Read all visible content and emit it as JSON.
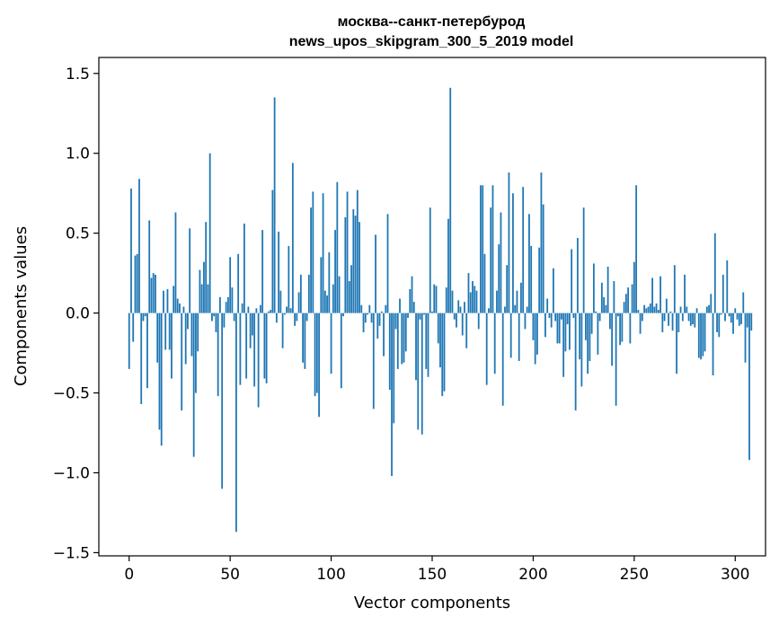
{
  "chart_data": {
    "type": "bar",
    "title_lines": [
      "москва--санкт-петербурод",
      "news_upos_skipgram_300_5_2019 model"
    ],
    "xlabel": "Vector components",
    "ylabel": "Components values",
    "xlim": [
      -15,
      315
    ],
    "ylim": [
      -1.52,
      1.6
    ],
    "xticks": [
      0,
      50,
      100,
      150,
      200,
      250,
      300
    ],
    "xtick_labels": [
      "0",
      "50",
      "100",
      "150",
      "200",
      "250",
      "300"
    ],
    "yticks": [
      -1.5,
      -1.0,
      -0.5,
      0.0,
      0.5,
      1.0,
      1.5
    ],
    "ytick_labels": [
      "−1.5",
      "−1.0",
      "−0.5",
      "0.0",
      "0.5",
      "1.0",
      "1.5"
    ],
    "grid": false,
    "bar_color": "#1f77b4",
    "values": [
      -0.35,
      0.78,
      -0.18,
      0.36,
      0.37,
      0.84,
      -0.57,
      -0.05,
      -0.02,
      -0.47,
      0.58,
      0.22,
      0.25,
      0.24,
      -0.31,
      -0.73,
      -0.83,
      0.14,
      -0.23,
      0.15,
      -0.23,
      -0.41,
      0.17,
      0.63,
      0.09,
      0.06,
      -0.61,
      0.04,
      -0.32,
      -0.1,
      0.53,
      -0.27,
      -0.9,
      -0.5,
      -0.24,
      0.27,
      0.18,
      0.32,
      0.57,
      0.18,
      1.0,
      -0.05,
      -0.02,
      -0.12,
      -0.52,
      0.1,
      -1.1,
      -0.09,
      0.07,
      0.1,
      0.35,
      0.16,
      -0.05,
      -1.37,
      0.37,
      -0.45,
      0.06,
      0.56,
      -0.41,
      0.04,
      -0.22,
      -0.14,
      -0.46,
      0.03,
      -0.59,
      0.05,
      0.52,
      -0.41,
      -0.44,
      0.01,
      0.02,
      0.77,
      1.35,
      -0.06,
      0.51,
      0.14,
      -0.22,
      -0.01,
      0.04,
      0.42,
      0.03,
      0.94,
      -0.08,
      -0.05,
      0.13,
      0.24,
      -0.31,
      -0.35,
      -0.05,
      0.24,
      0.66,
      0.76,
      -0.52,
      -0.5,
      -0.65,
      0.35,
      0.75,
      0.14,
      0.11,
      0.38,
      -0.38,
      0.18,
      0.52,
      0.82,
      0.23,
      -0.47,
      -0.02,
      0.6,
      0.76,
      0.2,
      0.3,
      0.65,
      0.61,
      0.77,
      0.57,
      0.05,
      -0.12,
      -0.06,
      -0.01,
      0.05,
      -0.06,
      -0.6,
      0.49,
      -0.16,
      -0.08,
      0.01,
      -0.27,
      0.05,
      0.62,
      -0.48,
      -1.02,
      -0.69,
      -0.1,
      -0.35,
      0.09,
      -0.32,
      -0.31,
      -0.24,
      -0.03,
      0.15,
      0.23,
      0.07,
      -0.42,
      -0.73,
      -0.04,
      -0.76,
      -0.01,
      -0.35,
      -0.4,
      0.66,
      0.01,
      0.18,
      0.17,
      -0.19,
      -0.34,
      -0.52,
      -0.49,
      0.16,
      0.59,
      1.41,
      0.14,
      -0.04,
      -0.09,
      0.08,
      0.04,
      -0.14,
      0.07,
      -0.22,
      0.25,
      0.13,
      0.2,
      0.17,
      0.14,
      -0.1,
      0.8,
      0.8,
      0.37,
      -0.45,
      0.03,
      0.66,
      0.8,
      -0.38,
      0.14,
      0.43,
      0.63,
      -0.58,
      0.04,
      0.3,
      0.88,
      -0.28,
      0.75,
      0.05,
      0.14,
      -0.3,
      0.19,
      0.79,
      -0.1,
      0.04,
      0.62,
      0.42,
      -0.17,
      -0.32,
      -0.26,
      0.41,
      0.88,
      0.68,
      -0.15,
      0.09,
      -0.03,
      -0.09,
      0.28,
      -0.05,
      -0.19,
      -0.19,
      -0.04,
      -0.4,
      -0.24,
      -0.07,
      -0.23,
      0.4,
      -0.03,
      -0.61,
      0.47,
      -0.29,
      -0.46,
      0.66,
      -0.17,
      -0.38,
      -0.3,
      -0.13,
      0.31,
      0.01,
      -0.26,
      -0.05,
      0.19,
      0.1,
      0.05,
      0.29,
      -0.1,
      -0.33,
      0.2,
      -0.58,
      -0.02,
      -0.2,
      -0.18,
      0.07,
      0.12,
      0.16,
      -0.19,
      0.18,
      0.32,
      0.8,
      0.02,
      -0.13,
      -0.05,
      0.05,
      0.03,
      0.04,
      0.06,
      0.22,
      0.04,
      0.06,
      0.02,
      0.23,
      -0.12,
      -0.05,
      0.09,
      -0.08,
      0.01,
      -0.11,
      0.3,
      -0.38,
      -0.12,
      0.04,
      -0.05,
      0.24,
      0.04,
      -0.05,
      -0.08,
      -0.07,
      -0.09,
      0.03,
      -0.28,
      -0.29,
      -0.27,
      -0.24,
      0.04,
      0.05,
      0.12,
      -0.39,
      0.5,
      -0.12,
      -0.15,
      -0.01,
      0.24,
      -0.05,
      0.33,
      -0.02,
      -0.06,
      -0.13,
      0.03,
      -0.04,
      -0.08,
      -0.07,
      0.13,
      -0.31,
      -0.09,
      -0.92,
      -0.11
    ]
  }
}
